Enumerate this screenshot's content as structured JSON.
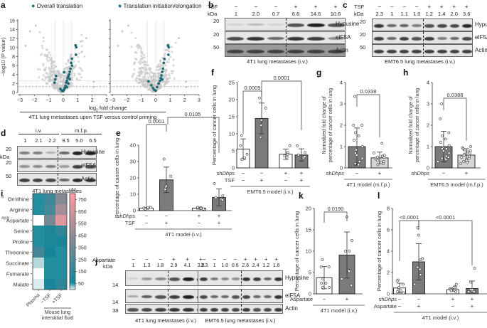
{
  "panels": {
    "a": {
      "label": "a",
      "legend_left": "Overall translation",
      "legend_right": "Translation initiation/elongation",
      "xlabel": "log2 fold change",
      "ylabel": "−log10 (P value)",
      "caption": "4T1 lung metastases upon TSF versus control priming",
      "xticks": [
        "−3",
        "−2",
        "−1",
        "0",
        "1",
        "2",
        "3"
      ],
      "yticks": [
        "0",
        "2",
        "4",
        "6",
        "8",
        "10",
        "12",
        "14",
        "16"
      ],
      "highlight_color": "#1a6e78",
      "background_color": "#c8c8c8"
    },
    "b": {
      "label": "b",
      "row_label": "TSF",
      "treatments": [
        "−",
        "−",
        "−",
        "+",
        "+",
        "+"
      ],
      "kda_label": "kDa",
      "quant": [
        "1",
        "2.0",
        "0.7",
        "6.6",
        "14.6",
        "10.6"
      ],
      "bands": [
        {
          "kda": "20",
          "name": "Hypusine"
        },
        {
          "kda": "20",
          "name": "eIF5A"
        },
        {
          "kda": "50",
          "name": "Actin"
        }
      ],
      "caption": "4T1 lung metastases (i.v.)"
    },
    "c": {
      "label": "c",
      "row_label": "TSF",
      "treatments": [
        "−",
        "−",
        "−",
        "−",
        "+",
        "+",
        "+",
        "+"
      ],
      "kda_label": "kDa",
      "quant": [
        "2.3",
        "1",
        "1.1",
        "1.0",
        "1.2",
        "1.4",
        "2.0",
        "3.6"
      ],
      "bands": [
        {
          "kda": "20",
          "name": "Hypusine"
        },
        {
          "kda": "20",
          "name": "eIF5A"
        },
        {
          "kda": "50",
          "name": "Actin"
        }
      ],
      "caption": "EMT6.5 lung metastases (i.v.)"
    },
    "d": {
      "label": "d",
      "group1": "i.v.",
      "group2": "m.f.p.",
      "kda_label": "kDa",
      "quant": [
        "1",
        "2.1",
        "2.2",
        "9.5",
        "5.0",
        "6.5"
      ],
      "bands": [
        {
          "kda": "20",
          "name": "Hypusine"
        },
        {
          "kda": "20",
          "name": "eIF5A"
        },
        {
          "kda": "50",
          "name": "Actin"
        }
      ],
      "caption": "4T1 lung metastases"
    },
    "i": {
      "label": "i",
      "unit": "µM",
      "rows": [
        "Ornithine",
        "Arginine",
        "Aspartate",
        "Serine",
        "Proline",
        "Threonine",
        "Succinate",
        "Fumarate",
        "Malate"
      ],
      "row_marks": [
        "#",
        "",
        "###",
        "",
        "",
        "",
        "",
        "",
        ""
      ],
      "cols": [
        "Plasma",
        "−TSF",
        "+TSF"
      ],
      "group_caption_line1": "Mouse lung",
      "group_caption_line2": "interstitial fluid",
      "scale_ticks": [
        "750",
        "650",
        "550",
        "450",
        "350",
        "250",
        "150",
        "50"
      ]
    },
    "j": {
      "label": "j",
      "row_label": "Aspartate",
      "kda_label": "kDa",
      "left": {
        "treatments": [
          "−",
          "−",
          "−",
          "+",
          "+",
          "+"
        ],
        "quant": [
          "1",
          "1.3",
          "1.8",
          "2.9",
          "4.1",
          "3.8"
        ],
        "kdas": [
          "14",
          "14",
          "38"
        ],
        "caption": "4T1 lung metastases (i.v.)"
      },
      "right": {
        "treatments": [
          "−",
          "−",
          "−",
          "−",
          "+",
          "+",
          "+",
          "+"
        ],
        "quant": [
          "2.3",
          "1",
          "1.0",
          "0.6",
          "2.6",
          "2.4",
          "1.2",
          "1.6"
        ],
        "caption": "EMT6.5 lung metastases (i.v.)"
      },
      "band_names": [
        "Hypusine",
        "eIF5A",
        "Actin"
      ]
    }
  },
  "chart_data": [
    {
      "id": "a-left",
      "type": "scatter",
      "title": "Overall translation",
      "xlabel": "log2 fold change",
      "ylabel": "−log10 (P value)",
      "xlim": [
        -3,
        3
      ],
      "ylim": [
        0,
        16
      ],
      "reference_lines": {
        "vertical": [
          -0.58,
          0,
          0.58
        ],
        "horizontal": [
          1.3,
          2.6
        ]
      },
      "highlighted_points": [
        [
          0.85,
          10.5
        ],
        [
          0.9,
          10.1
        ],
        [
          0.88,
          8.4
        ],
        [
          0.6,
          7.5
        ],
        [
          0.55,
          6.6
        ],
        [
          0.6,
          6.0
        ],
        [
          0.5,
          5.3
        ],
        [
          0.45,
          4.6
        ],
        [
          0.4,
          4.0
        ],
        [
          0.35,
          3.6
        ],
        [
          0.3,
          3.2
        ],
        [
          0.25,
          2.6
        ],
        [
          0.2,
          2.2
        ],
        [
          0.15,
          1.5
        ],
        [
          0.1,
          1.0
        ],
        [
          0.05,
          0.6
        ],
        [
          0,
          0.3
        ],
        [
          -0.1,
          0.4
        ],
        [
          -0.2,
          0.8
        ],
        [
          -0.5,
          3.7
        ],
        [
          -0.55,
          2.9
        ],
        [
          -0.6,
          2.2
        ],
        [
          0.05,
          4.5
        ],
        [
          0.45,
          3.0
        ],
        [
          0.35,
          2.0
        ],
        [
          0.25,
          1.2
        ]
      ]
    },
    {
      "id": "a-right",
      "type": "scatter",
      "title": "Translation initiation/elongation",
      "xlabel": "log2 fold change",
      "ylabel": "",
      "xlim": [
        -3,
        3
      ],
      "ylim": [
        0,
        16
      ],
      "reference_lines": {
        "vertical": [
          -0.58,
          0,
          0.58
        ],
        "horizontal": [
          1.3,
          2.6
        ]
      },
      "highlighted_points": [
        [
          0.85,
          10.5
        ],
        [
          0.9,
          10.1
        ],
        [
          0.88,
          8.4
        ],
        [
          0.6,
          7.5
        ],
        [
          0.55,
          6.6
        ],
        [
          0.5,
          5.3
        ],
        [
          0.45,
          4.6
        ],
        [
          0.4,
          3.8
        ],
        [
          0.35,
          3.2
        ],
        [
          0.3,
          2.6
        ],
        [
          0.2,
          2.0
        ],
        [
          0.1,
          1.2
        ],
        [
          0,
          0.4
        ],
        [
          -0.1,
          0.6
        ],
        [
          -0.2,
          1.0
        ],
        [
          -0.3,
          1.6
        ],
        [
          -0.5,
          2.5
        ],
        [
          0.45,
          2.9
        ]
      ]
    },
    {
      "id": "e",
      "type": "bar",
      "ylabel": "Percentage of cancer cells in lung",
      "ylim": [
        0,
        40
      ],
      "yticks": [
        "0",
        "10",
        "20",
        "30",
        "40"
      ],
      "categories": [
        "ctrl",
        "TSF",
        "shDhps",
        "shDhps+TSF"
      ],
      "values": [
        1.5,
        18.8,
        1.5,
        8.0
      ],
      "errors": [
        0.6,
        7.8,
        0.6,
        5.2
      ],
      "bar_fill": [
        "white",
        "grey",
        "white",
        "grey"
      ],
      "points": [
        [
          1,
          1.5,
          2,
          1,
          1.8
        ],
        [
          31.5,
          21,
          14.5,
          13,
          15
        ],
        [
          1,
          1.8,
          2,
          1.2,
          1.5
        ],
        [
          16.5,
          9,
          7,
          6.5,
          8
        ]
      ],
      "row_labels": [
        "shDhps",
        "TSF"
      ],
      "rows": [
        [
          "−",
          "−",
          "+",
          "+"
        ],
        [
          "−",
          "+",
          "−",
          "+"
        ]
      ],
      "comparisons": [
        {
          "label": "0.0001",
          "from": 0,
          "to": 1
        },
        {
          "label": "0.0105",
          "from": 1,
          "to": 3
        }
      ],
      "caption": "4T1 model (i.v.)",
      "panel": "e"
    },
    {
      "id": "f",
      "type": "bar",
      "ylabel": "Percentage of cancer cells in lung",
      "ylim": [
        0,
        25
      ],
      "yticks": [
        "0",
        "5",
        "10",
        "15",
        "20",
        "25"
      ],
      "categories": [
        "ctrl",
        "TSF",
        "shDhps",
        "shDhps+TSF"
      ],
      "values": [
        5.5,
        14.5,
        4.0,
        3.8
      ],
      "errors": [
        3.0,
        4.5,
        1.5,
        1.8
      ],
      "bar_fill": [
        "white",
        "grey",
        "white",
        "grey"
      ],
      "points": [
        [
          9.5,
          6.5,
          4,
          2.5,
          3
        ],
        [
          20.5,
          17.5,
          12.5,
          9,
          14
        ],
        [
          6.5,
          4.5,
          3.5,
          3.2,
          4
        ],
        [
          6.5,
          4.5,
          3,
          3.3,
          3.8
        ]
      ],
      "row_labels": [
        "shDhps",
        "TSF"
      ],
      "rows": [
        [
          "−",
          "−",
          "+",
          "+"
        ],
        [
          "−",
          "+",
          "−",
          "+"
        ]
      ],
      "comparisons": [
        {
          "label": "0.0009",
          "from": 0,
          "to": 1
        },
        {
          "label": "0.0001",
          "from": 1,
          "to": 3
        }
      ],
      "caption": "EMT6.5 model (i.v.)",
      "panel": "f"
    },
    {
      "id": "g",
      "type": "bar",
      "ylabel": "Normalized fold change of percentage of cancer cells in lung",
      "ylim": [
        0,
        4
      ],
      "yticks": [
        "0",
        "1",
        "2",
        "3",
        "4"
      ],
      "categories": [
        "ctrl",
        "shDhps"
      ],
      "values": [
        1.0,
        0.47
      ],
      "errors": [
        0.87,
        0.27
      ],
      "bar_fill": [
        "grey",
        "lightgrey"
      ],
      "points": [
        [
          3.35,
          2.0,
          2.0,
          1.65,
          1.5,
          1.3,
          1.0,
          0.85,
          0.7,
          0.6,
          0.45,
          0.3,
          0.2,
          0.15
        ],
        [
          1.15,
          0.7,
          0.6,
          0.55,
          0.5,
          0.45,
          0.4,
          0.35,
          0.3,
          0.25,
          0.2,
          0.15,
          0.5,
          0.55
        ]
      ],
      "row_labels": [
        "shDhps"
      ],
      "rows": [
        [
          "−",
          "+"
        ]
      ],
      "comparisons": [
        {
          "label": "0.0338",
          "from": 0,
          "to": 1
        }
      ],
      "caption": "4T1 model (m.f.p.)",
      "panel": "g"
    },
    {
      "id": "h",
      "type": "bar",
      "ylabel": "Normalized fold change of percentage of cancer cells in lung",
      "ylim": [
        0,
        4
      ],
      "yticks": [
        "0",
        "1",
        "2",
        "3",
        "4"
      ],
      "categories": [
        "ctrl",
        "shDhps"
      ],
      "values": [
        1.0,
        0.6
      ],
      "errors": [
        0.72,
        0.3
      ],
      "bar_fill": [
        "grey",
        "lightgrey"
      ],
      "points": [
        [
          3.0,
          2.3,
          1.65,
          1.5,
          1.35,
          1.2,
          1.05,
          0.95,
          0.9,
          0.8,
          0.7,
          0.55,
          0.45,
          0.45,
          0.4,
          0.3,
          0.5,
          0.9
        ],
        [
          1.0,
          0.95,
          0.9,
          0.85,
          0.8,
          0.75,
          0.7,
          0.65,
          0.6,
          0.55,
          0.5,
          0.45,
          0.4,
          0.35,
          0.3,
          0.25,
          0.2,
          0.85
        ]
      ],
      "row_labels": [
        "shDhps"
      ],
      "rows": [
        [
          "−",
          "+"
        ]
      ],
      "comparisons": [
        {
          "label": "0.0388",
          "from": 0,
          "to": 1
        }
      ],
      "caption": "EMT6.5 model (m.f.p.)",
      "panel": "h"
    },
    {
      "id": "k",
      "type": "bar",
      "ylabel": "Percentage of cancer cells in lung",
      "ylim": [
        0,
        20
      ],
      "yticks": [
        "0",
        "5",
        "10",
        "15",
        "20"
      ],
      "categories": [
        "ctrl",
        "Aspartate"
      ],
      "values": [
        3.8,
        9.1
      ],
      "errors": [
        2.6,
        5.4
      ],
      "bar_fill": [
        "white",
        "grey"
      ],
      "points": [
        [
          8,
          6.3,
          6.3,
          3.5,
          2.5,
          2.5,
          1.5,
          1.3,
          1.5
        ],
        [
          18,
          12.5,
          10,
          10,
          5.5,
          5.3,
          3.5,
          2
        ]
      ],
      "row_labels": [
        "Aspartate"
      ],
      "rows": [
        [
          "−",
          "+"
        ]
      ],
      "comparisons": [
        {
          "label": "0.0190",
          "from": 0,
          "to": 1
        }
      ],
      "caption": "4T1 model (i.v.)",
      "panel": "k"
    },
    {
      "id": "l",
      "type": "bar",
      "ylabel": "Percentage of cancer cells in lung",
      "ylim": [
        0,
        8
      ],
      "yticks": [
        "0",
        "2",
        "4",
        "6",
        "8"
      ],
      "categories": [
        "ctrl",
        "Aspartate",
        "shDhps",
        "shDhps+Aspartate"
      ],
      "values": [
        0.55,
        3.0,
        0.4,
        0.5
      ],
      "errors": [
        0.45,
        1.7,
        0.15,
        0.7
      ],
      "bar_fill": [
        "white",
        "grey",
        "white",
        "grey"
      ],
      "points": [
        [
          1.3,
          1.2,
          0.9,
          0.5,
          0.3,
          0.2,
          0.1,
          0.6
        ],
        [
          6.2,
          5.5,
          3.3,
          3.2,
          2.5,
          2.3,
          1.8,
          0.9
        ],
        [
          0.9,
          0.7,
          0.6,
          0.5,
          0.4,
          0.3,
          0.2,
          0.6
        ],
        [
          2.4,
          1.1,
          0.4,
          0.3,
          0.2,
          0.2,
          0.3,
          0.4
        ]
      ],
      "row_labels": [
        "shDhps",
        "Aspartate"
      ],
      "rows": [
        [
          "−",
          "−",
          "+",
          "+"
        ],
        [
          "−",
          "+",
          "−",
          "+"
        ]
      ],
      "comparisons": [
        {
          "label": "<0.0001",
          "from": 0,
          "to": 1
        },
        {
          "label": "<0.0001",
          "from": 1,
          "to": 3
        }
      ],
      "caption": "4T1 model (i.v.)",
      "panel": "l"
    },
    {
      "id": "i",
      "type": "heatmap",
      "rows": [
        "Ornithine",
        "Arginine",
        "Aspartate",
        "Serine",
        "Proline",
        "Threonine",
        "Succinate",
        "Fumarate",
        "Malate"
      ],
      "cols": [
        "Plasma",
        "−TSF",
        "+TSF"
      ],
      "values_uM": [
        [
          60,
          200,
          420
        ],
        [
          60,
          230,
          520
        ],
        [
          0,
          380,
          700
        ],
        [
          60,
          100,
          160
        ],
        [
          60,
          100,
          90
        ],
        [
          220,
          70,
          60
        ],
        [
          20,
          60,
          60
        ],
        [
          0,
          60,
          60
        ],
        [
          10,
          90,
          150
        ]
      ],
      "color_scale": {
        "min": 0,
        "max": 800,
        "ticks": [
          50,
          150,
          250,
          350,
          450,
          550,
          650,
          750
        ],
        "colors": [
          "#ffffff",
          "#13869a",
          "#8a8a94",
          "#ff9aa0"
        ]
      },
      "unit": "µM"
    }
  ]
}
